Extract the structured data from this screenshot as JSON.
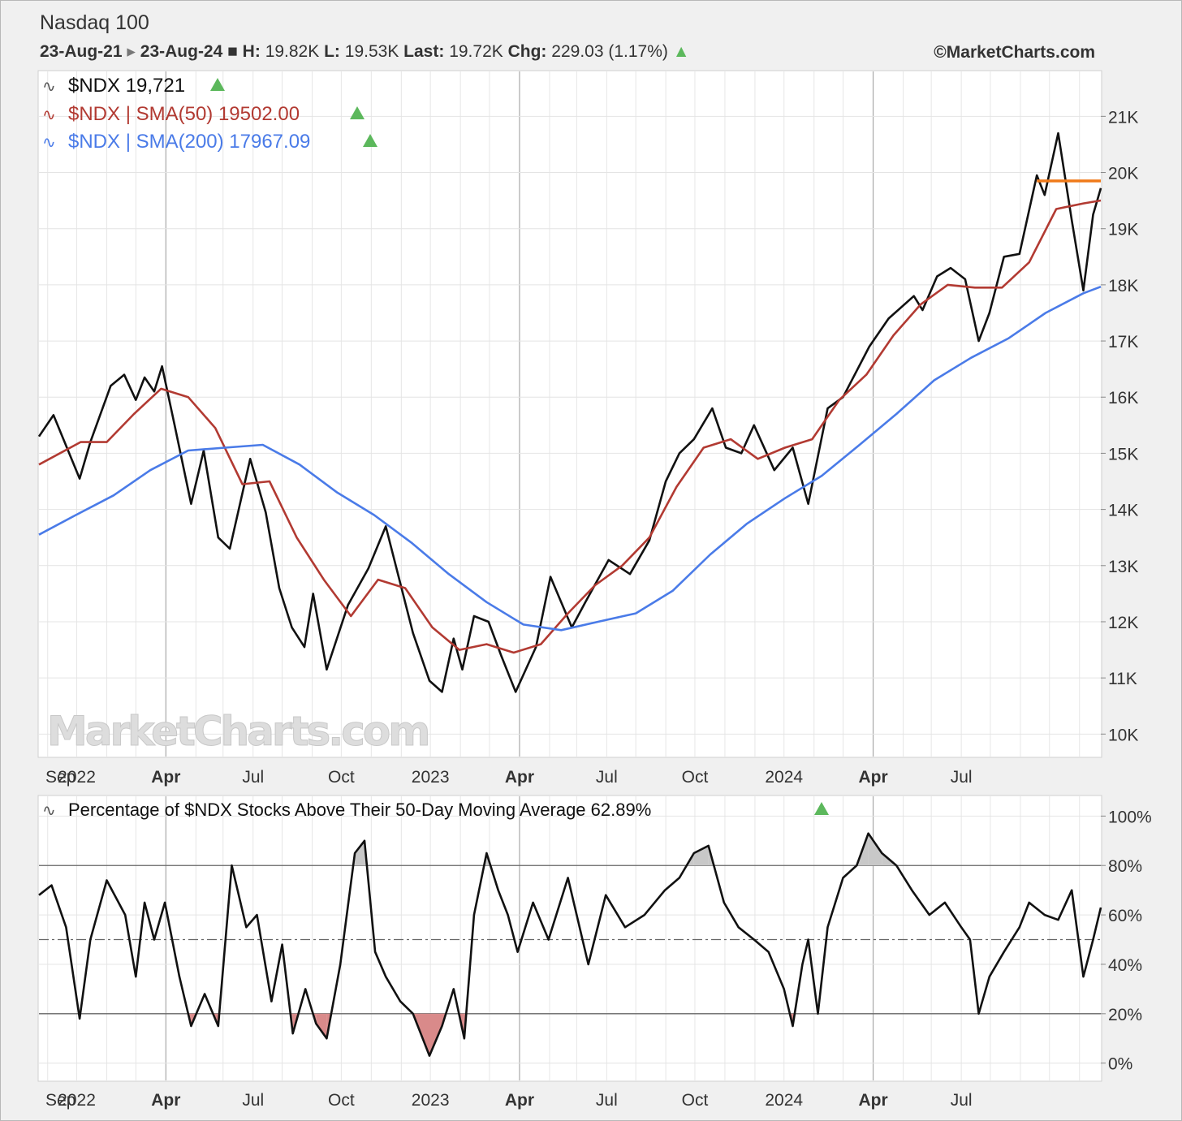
{
  "header": {
    "title": "Nasdaq 100",
    "date_from": "23-Aug-21",
    "date_to": "23-Aug-24",
    "high_label": "H:",
    "high": "19.82K",
    "low_label": "L:",
    "low": "19.53K",
    "last_label": "Last:",
    "last": "19.72K",
    "chg_label": "Chg:",
    "chg": "229.03 (1.17%)",
    "copyright": "©MarketCharts.com"
  },
  "watermark": "MarketCharts.com",
  "colors": {
    "price": "#111111",
    "sma50": "#b23a32",
    "sma200": "#4a7be8",
    "resistance": "#f07a1a",
    "up_arrow": "#5cb85c",
    "above80_fill": "#c8c8c8",
    "below20_fill": "#d98a8a"
  },
  "chart_data": [
    {
      "type": "line",
      "legend": [
        {
          "label": "$NDX 19,721",
          "color": "#111111"
        },
        {
          "label": "$NDX | SMA(50) 19502.00",
          "color": "#b23a32"
        },
        {
          "label": "$NDX | SMA(200) 17967.09",
          "color": "#4a7be8"
        }
      ],
      "x_ticks": [
        "Sep",
        "2022",
        "Apr",
        "Jul",
        "Oct",
        "2023",
        "Apr",
        "Jul",
        "Oct",
        "2024",
        "Apr",
        "Jul"
      ],
      "y_ticks": [
        "10K",
        "11K",
        "12K",
        "13K",
        "14K",
        "15K",
        "16K",
        "17K",
        "18K",
        "19K",
        "20K",
        "21K"
      ],
      "ylim": [
        9600,
        21800
      ],
      "x_range": [
        "2021-08-23",
        "2024-08-23"
      ],
      "resistance": {
        "start": "2024-06-18",
        "end": "2024-08-23",
        "value": 19850
      },
      "series": [
        {
          "key": "price",
          "x": [
            "2021-08-23",
            "2021-09-07",
            "2021-10-04",
            "2021-10-15",
            "2021-11-05",
            "2021-11-19",
            "2021-12-01",
            "2021-12-10",
            "2021-12-20",
            "2021-12-28",
            "2022-01-10",
            "2022-01-27",
            "2022-02-09",
            "2022-02-24",
            "2022-03-08",
            "2022-03-29",
            "2022-04-14",
            "2022-04-28",
            "2022-05-11",
            "2022-05-24",
            "2022-06-02",
            "2022-06-16",
            "2022-07-08",
            "2022-07-29",
            "2022-08-16",
            "2022-09-13",
            "2022-09-30",
            "2022-10-13",
            "2022-10-25",
            "2022-11-03",
            "2022-11-15",
            "2022-11-30",
            "2022-12-13",
            "2022-12-28",
            "2023-01-18",
            "2023-02-02",
            "2023-02-24",
            "2023-03-10",
            "2023-04-03",
            "2023-04-25",
            "2023-05-15",
            "2023-06-01",
            "2023-06-15",
            "2023-06-30",
            "2023-07-19",
            "2023-08-02",
            "2023-08-18",
            "2023-08-31",
            "2023-09-21",
            "2023-10-10",
            "2023-10-26",
            "2023-11-15",
            "2023-12-01",
            "2023-12-28",
            "2024-01-17",
            "2024-02-12",
            "2024-02-21",
            "2024-03-07",
            "2024-03-21",
            "2024-04-05",
            "2024-04-19",
            "2024-04-30",
            "2024-05-15",
            "2024-05-31",
            "2024-06-18",
            "2024-06-26",
            "2024-07-10",
            "2024-07-24",
            "2024-08-05",
            "2024-08-15",
            "2024-08-23"
          ],
          "y": [
            15300,
            15680,
            14550,
            15200,
            16200,
            16400,
            15950,
            16350,
            16100,
            16550,
            15500,
            14100,
            15050,
            13500,
            13300,
            14900,
            13950,
            12600,
            11900,
            11550,
            12500,
            11150,
            12300,
            12950,
            13700,
            11800,
            10950,
            10750,
            11700,
            11150,
            12100,
            12000,
            11400,
            10750,
            11550,
            12800,
            11900,
            12350,
            13100,
            12850,
            13450,
            14500,
            15000,
            15250,
            15800,
            15100,
            15000,
            15500,
            14700,
            15100,
            14100,
            15800,
            16000,
            16900,
            17400,
            17800,
            17550,
            18150,
            18300,
            18100,
            17000,
            17500,
            18500,
            18550,
            19950,
            19600,
            20700,
            19150,
            17900,
            19250,
            19721
          ]
        },
        {
          "key": "sma50",
          "x": [
            "2021-08-23",
            "2021-10-05",
            "2021-11-01",
            "2021-11-29",
            "2021-12-27",
            "2022-01-24",
            "2022-02-21",
            "2022-03-21",
            "2022-04-18",
            "2022-05-16",
            "2022-06-13",
            "2022-07-11",
            "2022-08-08",
            "2022-09-05",
            "2022-10-03",
            "2022-10-31",
            "2022-11-28",
            "2022-12-26",
            "2023-01-23",
            "2023-02-20",
            "2023-03-20",
            "2023-04-17",
            "2023-05-15",
            "2023-06-12",
            "2023-07-10",
            "2023-08-07",
            "2023-09-04",
            "2023-10-02",
            "2023-10-30",
            "2023-11-27",
            "2023-12-25",
            "2024-01-22",
            "2024-02-19",
            "2024-03-18",
            "2024-04-15",
            "2024-05-13",
            "2024-06-10",
            "2024-07-08",
            "2024-08-05",
            "2024-08-23"
          ],
          "y": [
            14800,
            15200,
            15200,
            15700,
            16150,
            16000,
            15450,
            14450,
            14500,
            13500,
            12750,
            12100,
            12750,
            12600,
            11900,
            11500,
            11600,
            11450,
            11600,
            12150,
            12650,
            13000,
            13500,
            14400,
            15100,
            15250,
            14900,
            15100,
            15250,
            15950,
            16400,
            17100,
            17650,
            18000,
            17950,
            17950,
            18400,
            19350,
            19450,
            19502
          ]
        },
        {
          "key": "sma200",
          "x": [
            "2021-08-23",
            "2021-09-30",
            "2021-11-08",
            "2021-12-16",
            "2022-01-24",
            "2022-03-03",
            "2022-04-11",
            "2022-05-19",
            "2022-06-27",
            "2022-08-04",
            "2022-09-12",
            "2022-10-20",
            "2022-11-28",
            "2023-01-05",
            "2023-02-13",
            "2023-03-23",
            "2023-05-01",
            "2023-06-08",
            "2023-07-17",
            "2023-08-24",
            "2023-10-02",
            "2023-11-09",
            "2023-12-18",
            "2024-01-25",
            "2024-03-04",
            "2024-04-11",
            "2024-05-20",
            "2024-06-27",
            "2024-08-05",
            "2024-08-23"
          ],
          "y": [
            13550,
            13900,
            14250,
            14700,
            15050,
            15100,
            15150,
            14800,
            14300,
            13900,
            13400,
            12850,
            12350,
            11950,
            11850,
            12000,
            12150,
            12550,
            13200,
            13750,
            14200,
            14600,
            15150,
            15700,
            16300,
            16700,
            17050,
            17500,
            17850,
            17967
          ]
        }
      ]
    },
    {
      "type": "line",
      "legend": [
        {
          "label": "Percentage of $NDX Stocks Above Their 50-Day Moving Average 62.89%",
          "color": "#111111"
        }
      ],
      "x_ticks": [
        "Sep",
        "2022",
        "Apr",
        "Jul",
        "Oct",
        "2023",
        "Apr",
        "Jul",
        "Oct",
        "2024",
        "Apr",
        "Jul"
      ],
      "y_ticks": [
        "0%",
        "20%",
        "40%",
        "60%",
        "80%",
        "100%"
      ],
      "ylim": [
        -7,
        108
      ],
      "reference_lines": [
        20,
        50,
        80
      ],
      "series": [
        {
          "key": "breadth",
          "x": [
            "2021-08-23",
            "2021-09-05",
            "2021-09-20",
            "2021-10-04",
            "2021-10-15",
            "2021-11-01",
            "2021-11-20",
            "2021-12-01",
            "2021-12-10",
            "2021-12-20",
            "2021-12-31",
            "2022-01-15",
            "2022-01-27",
            "2022-02-10",
            "2022-02-24",
            "2022-03-10",
            "2022-03-25",
            "2022-04-05",
            "2022-04-20",
            "2022-05-01",
            "2022-05-12",
            "2022-05-25",
            "2022-06-05",
            "2022-06-16",
            "2022-06-30",
            "2022-07-15",
            "2022-07-25",
            "2022-08-05",
            "2022-08-16",
            "2022-08-31",
            "2022-09-13",
            "2022-09-25",
            "2022-09-30",
            "2022-10-13",
            "2022-10-25",
            "2022-11-05",
            "2022-11-15",
            "2022-11-28",
            "2022-12-10",
            "2022-12-20",
            "2022-12-30",
            "2023-01-15",
            "2023-01-31",
            "2023-02-20",
            "2023-03-13",
            "2023-03-31",
            "2023-04-20",
            "2023-05-10",
            "2023-05-31",
            "2023-06-15",
            "2023-06-30",
            "2023-07-15",
            "2023-07-31",
            "2023-08-15",
            "2023-08-31",
            "2023-09-15",
            "2023-10-01",
            "2023-10-10",
            "2023-10-20",
            "2023-10-26",
            "2023-11-05",
            "2023-11-15",
            "2023-12-01",
            "2023-12-15",
            "2023-12-27",
            "2024-01-10",
            "2024-01-25",
            "2024-02-10",
            "2024-02-28",
            "2024-03-15",
            "2024-04-01",
            "2024-04-10",
            "2024-04-19",
            "2024-04-30",
            "2024-05-15",
            "2024-05-31",
            "2024-06-10",
            "2024-06-26",
            "2024-07-10",
            "2024-07-24",
            "2024-08-05",
            "2024-08-15",
            "2024-08-23"
          ],
          "y": [
            68,
            72,
            55,
            18,
            50,
            74,
            60,
            35,
            65,
            50,
            65,
            35,
            15,
            28,
            15,
            80,
            55,
            60,
            25,
            48,
            12,
            30,
            16,
            10,
            40,
            85,
            90,
            45,
            35,
            25,
            20,
            8,
            3,
            15,
            30,
            10,
            60,
            85,
            70,
            60,
            45,
            65,
            50,
            75,
            40,
            68,
            55,
            60,
            70,
            75,
            85,
            88,
            65,
            55,
            50,
            45,
            30,
            15,
            40,
            50,
            20,
            55,
            75,
            80,
            93,
            85,
            80,
            70,
            60,
            65,
            55,
            50,
            20,
            35,
            45,
            55,
            65,
            60,
            58,
            70,
            35,
            50,
            63
          ]
        }
      ]
    }
  ]
}
